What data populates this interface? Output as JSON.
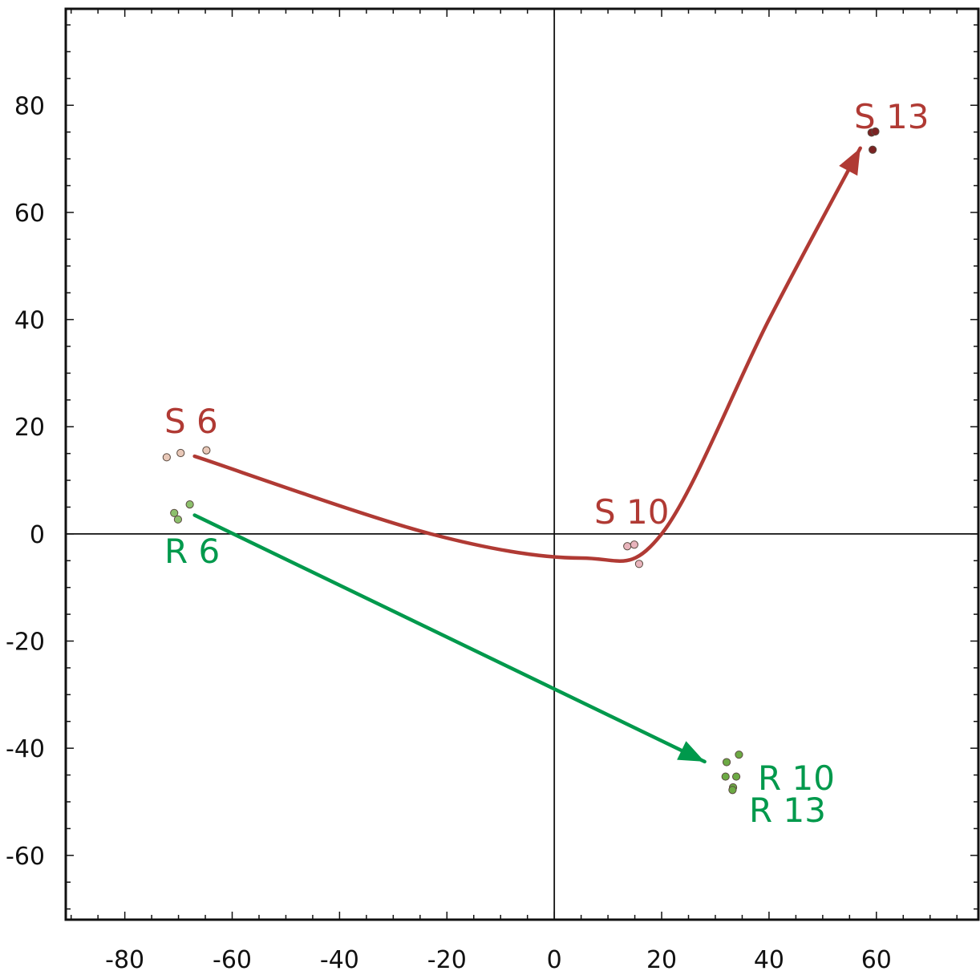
{
  "chart_data": {
    "type": "scatter",
    "title": "",
    "xlabel": "",
    "ylabel": "",
    "xlim": [
      -91,
      79
    ],
    "ylim": [
      -72,
      98
    ],
    "xticks": [
      -80,
      -60,
      -40,
      -20,
      0,
      20,
      40,
      60
    ],
    "yticks": [
      80,
      60,
      40,
      20,
      0,
      -20,
      -40,
      -60
    ],
    "x_tick_labels": [
      "-80",
      "-60",
      "-40",
      "-20",
      "0",
      "20",
      "40",
      "60"
    ],
    "y_tick_labels": [
      "80",
      "60",
      "40",
      "20",
      "0",
      "-20",
      "-40",
      "-60"
    ],
    "reference_lines": {
      "x": 0,
      "y": 0
    },
    "grid": false,
    "series": [
      {
        "group": "S",
        "color": "#b03a34",
        "points": [
          {
            "label": "S 6",
            "color": "#e8c8b8",
            "values": [
              [
                -72.2,
                14.3
              ],
              [
                -69.6,
                15.1
              ],
              [
                -64.8,
                15.6
              ]
            ]
          },
          {
            "label": "S 10",
            "color": "#e8b4bc",
            "values": [
              [
                13.6,
                -2.3
              ],
              [
                14.9,
                -2.0
              ],
              [
                15.8,
                -5.6
              ]
            ]
          },
          {
            "label": "S 13",
            "color": "#7a2222",
            "values": [
              [
                59.1,
                74.9
              ],
              [
                59.8,
                75.1
              ],
              [
                59.3,
                71.7
              ]
            ]
          }
        ],
        "trajectory": [
          [
            -67,
            14.5
          ],
          [
            -23,
            0
          ],
          [
            5,
            -4.5
          ],
          [
            20,
            0
          ],
          [
            40,
            40
          ],
          [
            57,
            72
          ]
        ]
      },
      {
        "group": "R",
        "color": "#00994c",
        "points": [
          {
            "label": "R 6",
            "color": "#8cc06c",
            "values": [
              [
                -70.8,
                3.9
              ],
              [
                -70.1,
                2.7
              ],
              [
                -67.9,
                5.5
              ]
            ]
          },
          {
            "label": "R 10",
            "color": "#6caa44",
            "values": [
              [
                32.1,
                -42.6
              ],
              [
                34.4,
                -41.2
              ]
            ]
          },
          {
            "label": "R 13",
            "color": "#6caa44",
            "values": [
              [
                31.9,
                -45.3
              ],
              [
                33.9,
                -45.3
              ],
              [
                33.3,
                -47.3
              ],
              [
                33.2,
                -47.8
              ]
            ]
          }
        ],
        "trajectory": [
          [
            -67,
            3.5
          ],
          [
            28,
            -42.5
          ]
        ]
      }
    ]
  }
}
